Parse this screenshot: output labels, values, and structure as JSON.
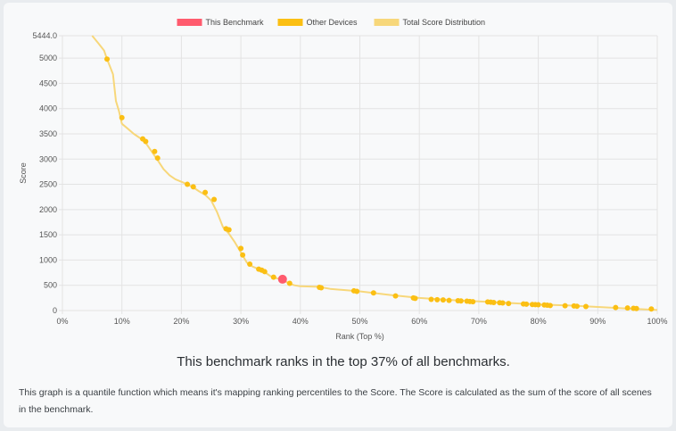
{
  "chart_data": {
    "type": "line",
    "xlabel": "Rank (Top %)",
    "ylabel": "Score",
    "xlim": [
      0,
      100
    ],
    "ylim": [
      0,
      5444.0
    ],
    "x_ticks": [
      "0%",
      "10%",
      "20%",
      "30%",
      "40%",
      "50%",
      "60%",
      "70%",
      "80%",
      "90%",
      "100%"
    ],
    "y_ticks": [
      "0",
      "500",
      "1000",
      "1500",
      "2000",
      "2500",
      "3000",
      "3500",
      "4000",
      "4500",
      "5000",
      "5444.0"
    ],
    "y_tick_values": [
      0,
      500,
      1000,
      1500,
      2000,
      2500,
      3000,
      3500,
      4000,
      4500,
      5000,
      5444
    ],
    "legend": [
      {
        "label": "This Benchmark",
        "color": "#ff5b6e"
      },
      {
        "label": "Other Devices",
        "color": "#fbbf13"
      },
      {
        "label": "Total Score Distribution",
        "color": "#f7d77a"
      }
    ],
    "grid": true,
    "legend_position": "top",
    "series": [
      {
        "name": "Total Score Distribution",
        "style": "line",
        "color": "#f7d77a",
        "x": [
          5,
          6,
          7,
          7.5,
          8,
          8.5,
          9,
          9.5,
          10,
          11,
          12,
          13,
          14,
          15,
          16,
          17,
          18,
          19,
          20,
          21,
          22,
          23,
          24,
          25,
          26,
          27,
          28,
          29,
          30,
          31,
          32,
          33,
          34,
          35,
          36,
          37,
          38,
          39,
          40,
          43,
          45,
          50,
          55,
          60,
          65,
          70,
          75,
          80,
          85,
          90,
          95,
          100
        ],
        "y": [
          5444,
          5300,
          5150,
          4980,
          4830,
          4680,
          4150,
          3950,
          3700,
          3600,
          3500,
          3420,
          3320,
          3150,
          2980,
          2800,
          2680,
          2600,
          2550,
          2500,
          2440,
          2360,
          2290,
          2180,
          1950,
          1650,
          1520,
          1350,
          1150,
          950,
          870,
          820,
          760,
          680,
          640,
          610,
          540,
          500,
          480,
          470,
          430,
          380,
          310,
          250,
          210,
          180,
          150,
          120,
          100,
          70,
          40,
          10
        ]
      },
      {
        "name": "Other Devices",
        "style": "points",
        "color": "#fbbf13",
        "x": [
          7.5,
          10,
          13.5,
          14,
          15.5,
          16,
          21,
          22,
          24,
          25.5,
          27.5,
          28,
          30,
          30.3,
          31.5,
          33,
          33.5,
          34,
          35.5,
          38.2,
          43.2,
          43.5,
          49,
          49.5,
          52.3,
          56,
          59,
          59.3,
          62,
          63,
          64,
          65,
          66.5,
          67,
          68,
          68.5,
          69,
          71.5,
          72,
          72.5,
          73.5,
          74,
          75,
          77.5,
          78,
          79,
          79.5,
          80,
          81,
          81.5,
          82,
          84.5,
          86,
          86.5,
          88,
          93,
          95,
          96,
          96.5,
          99
        ],
        "y": [
          4980,
          3820,
          3400,
          3350,
          3150,
          3020,
          2500,
          2450,
          2340,
          2200,
          1620,
          1600,
          1230,
          1100,
          920,
          820,
          800,
          770,
          660,
          540,
          460,
          450,
          390,
          380,
          350,
          290,
          250,
          240,
          220,
          215,
          210,
          200,
          195,
          190,
          185,
          180,
          175,
          170,
          165,
          160,
          155,
          150,
          140,
          130,
          125,
          120,
          118,
          115,
          110,
          105,
          100,
          95,
          90,
          85,
          80,
          60,
          50,
          45,
          40,
          30
        ]
      },
      {
        "name": "This Benchmark",
        "style": "point",
        "color": "#ff5b6e",
        "x": [
          37
        ],
        "y": [
          620
        ]
      }
    ]
  },
  "summary": {
    "headline": "This benchmark ranks in the top 37% of all benchmarks.",
    "description": "This graph is a quantile function which means it's mapping ranking percentiles to the Score. The Score is calculated as the sum of the score of all scenes in the benchmark."
  }
}
